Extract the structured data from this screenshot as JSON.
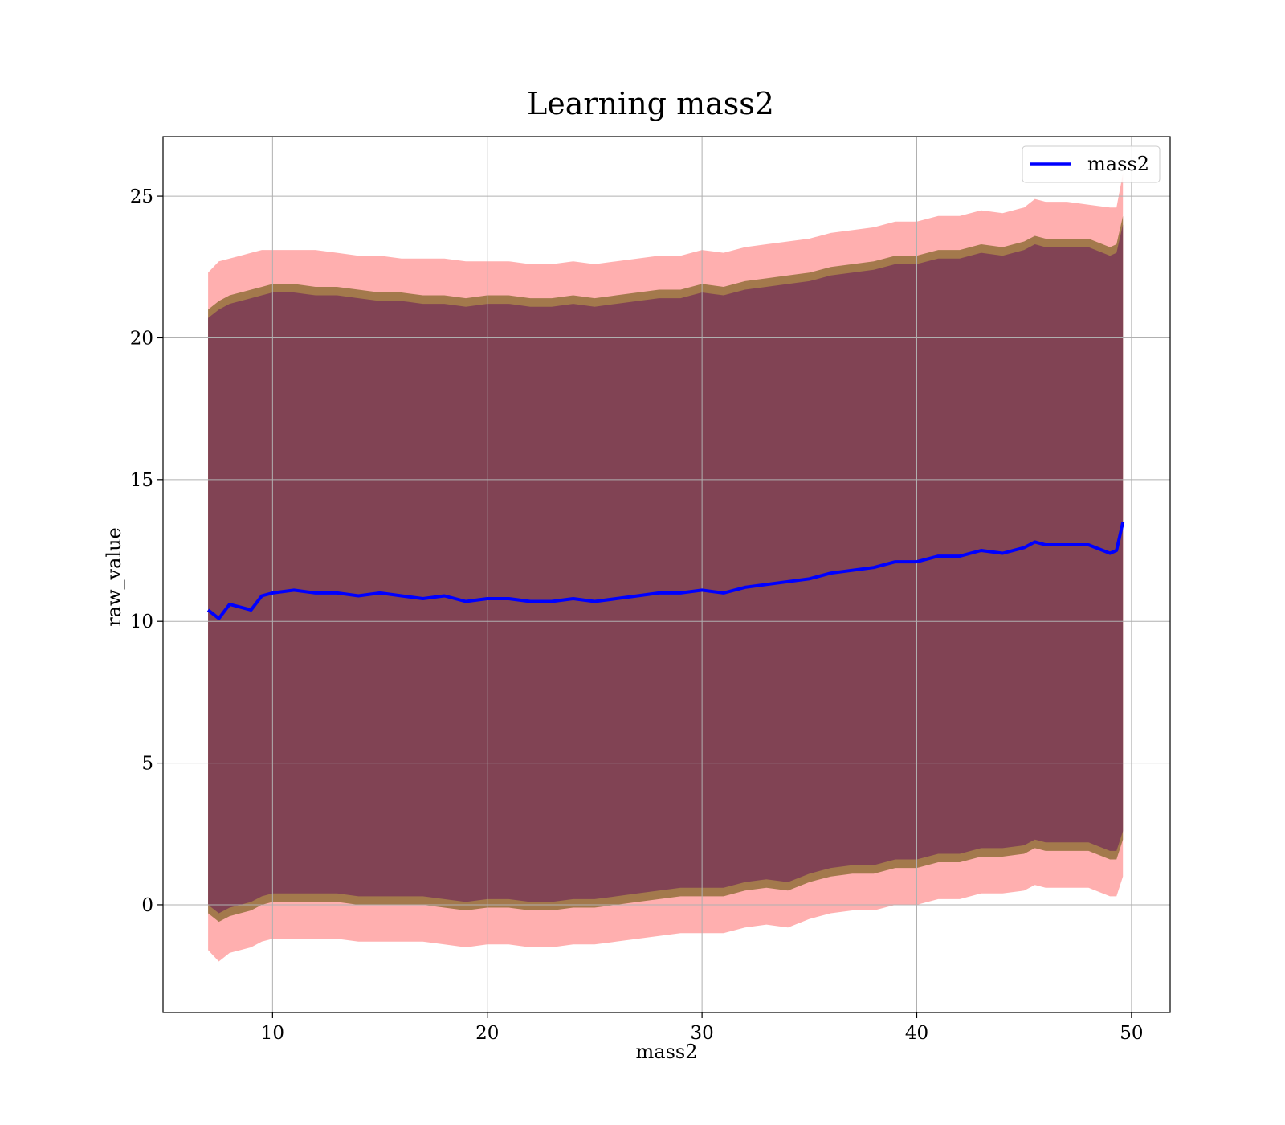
{
  "chart_data": {
    "type": "area",
    "title": "Learning mass2",
    "xlabel": "mass2",
    "ylabel": "raw_value",
    "xlim": [
      4.9,
      51.8
    ],
    "ylim": [
      -3.8,
      27.1
    ],
    "xticks": [
      10,
      20,
      30,
      40,
      50
    ],
    "yticks": [
      0,
      5,
      10,
      15,
      20,
      25
    ],
    "grid": true,
    "legend": {
      "position": "upper-right",
      "entries": [
        "mass2"
      ]
    },
    "colors": {
      "line": "#0000ff",
      "outer_band": "#ff6e6e",
      "middle_band": "#a3794c",
      "inner_band": "#7b3a56",
      "grid": "#b0b0b0"
    },
    "series": [
      {
        "name": "mass2",
        "x": [
          7.0,
          7.5,
          8,
          8.5,
          9,
          9.5,
          10,
          11,
          12,
          13,
          14,
          15,
          16,
          17,
          18,
          19,
          20,
          21,
          22,
          23,
          24,
          25,
          26,
          27,
          28,
          29,
          30,
          31,
          32,
          33,
          34,
          35,
          36,
          37,
          38,
          39,
          40,
          41,
          42,
          43,
          44,
          45,
          45.5,
          46,
          47,
          48,
          49,
          49.3,
          49.6
        ],
        "y": [
          10.4,
          10.1,
          10.6,
          10.5,
          10.4,
          10.9,
          11.0,
          11.1,
          11.0,
          11.0,
          10.9,
          11.0,
          10.9,
          10.8,
          10.9,
          10.7,
          10.8,
          10.8,
          10.7,
          10.7,
          10.8,
          10.7,
          10.8,
          10.9,
          11.0,
          11.0,
          11.1,
          11.0,
          11.2,
          11.3,
          11.4,
          11.5,
          11.7,
          11.8,
          11.9,
          12.1,
          12.1,
          12.3,
          12.3,
          12.5,
          12.4,
          12.6,
          12.8,
          12.7,
          12.7,
          12.7,
          12.4,
          12.5,
          13.5
        ]
      }
    ],
    "bands": [
      {
        "name": "outer",
        "upper": [
          22.3,
          22.7,
          22.8,
          22.9,
          23.0,
          23.1,
          23.1,
          23.1,
          23.1,
          23.0,
          22.9,
          22.9,
          22.8,
          22.8,
          22.8,
          22.7,
          22.7,
          22.7,
          22.6,
          22.6,
          22.7,
          22.6,
          22.7,
          22.8,
          22.9,
          22.9,
          23.1,
          23.0,
          23.2,
          23.3,
          23.4,
          23.5,
          23.7,
          23.8,
          23.9,
          24.1,
          24.1,
          24.3,
          24.3,
          24.5,
          24.4,
          24.6,
          24.9,
          24.8,
          24.8,
          24.7,
          24.6,
          24.6,
          25.8
        ],
        "lower": [
          -1.6,
          -2.0,
          -1.7,
          -1.6,
          -1.5,
          -1.3,
          -1.2,
          -1.2,
          -1.2,
          -1.2,
          -1.3,
          -1.3,
          -1.3,
          -1.3,
          -1.4,
          -1.5,
          -1.4,
          -1.4,
          -1.5,
          -1.5,
          -1.4,
          -1.4,
          -1.3,
          -1.2,
          -1.1,
          -1.0,
          -1.0,
          -1.0,
          -0.8,
          -0.7,
          -0.8,
          -0.5,
          -0.3,
          -0.2,
          -0.2,
          0.0,
          0.0,
          0.2,
          0.2,
          0.4,
          0.4,
          0.5,
          0.7,
          0.6,
          0.6,
          0.6,
          0.3,
          0.3,
          1.0
        ]
      },
      {
        "name": "middle",
        "upper": [
          21.0,
          21.3,
          21.5,
          21.6,
          21.7,
          21.8,
          21.9,
          21.9,
          21.8,
          21.8,
          21.7,
          21.6,
          21.6,
          21.5,
          21.5,
          21.4,
          21.5,
          21.5,
          21.4,
          21.4,
          21.5,
          21.4,
          21.5,
          21.6,
          21.7,
          21.7,
          21.9,
          21.8,
          22.0,
          22.1,
          22.2,
          22.3,
          22.5,
          22.6,
          22.7,
          22.9,
          22.9,
          23.1,
          23.1,
          23.3,
          23.2,
          23.4,
          23.6,
          23.5,
          23.5,
          23.5,
          23.2,
          23.3,
          24.3
        ],
        "lower": [
          -0.3,
          -0.6,
          -0.4,
          -0.3,
          -0.2,
          0.0,
          0.1,
          0.1,
          0.1,
          0.1,
          0.0,
          0.0,
          0.0,
          0.0,
          -0.1,
          -0.2,
          -0.1,
          -0.1,
          -0.2,
          -0.2,
          -0.1,
          -0.1,
          0.0,
          0.1,
          0.2,
          0.3,
          0.3,
          0.3,
          0.5,
          0.6,
          0.5,
          0.8,
          1.0,
          1.1,
          1.1,
          1.3,
          1.3,
          1.5,
          1.5,
          1.7,
          1.7,
          1.8,
          2.0,
          1.9,
          1.9,
          1.9,
          1.6,
          1.6,
          2.3
        ]
      },
      {
        "name": "inner",
        "upper": [
          20.7,
          21.0,
          21.2,
          21.3,
          21.4,
          21.5,
          21.6,
          21.6,
          21.5,
          21.5,
          21.4,
          21.3,
          21.3,
          21.2,
          21.2,
          21.1,
          21.2,
          21.2,
          21.1,
          21.1,
          21.2,
          21.1,
          21.2,
          21.3,
          21.4,
          21.4,
          21.6,
          21.5,
          21.7,
          21.8,
          21.9,
          22.0,
          22.2,
          22.3,
          22.4,
          22.6,
          22.6,
          22.8,
          22.8,
          23.0,
          22.9,
          23.1,
          23.3,
          23.2,
          23.2,
          23.2,
          22.9,
          23.0,
          24.0
        ],
        "lower": [
          0.0,
          -0.3,
          -0.1,
          0.0,
          0.1,
          0.3,
          0.4,
          0.4,
          0.4,
          0.4,
          0.3,
          0.3,
          0.3,
          0.3,
          0.2,
          0.1,
          0.2,
          0.2,
          0.1,
          0.1,
          0.2,
          0.2,
          0.3,
          0.4,
          0.5,
          0.6,
          0.6,
          0.6,
          0.8,
          0.9,
          0.8,
          1.1,
          1.3,
          1.4,
          1.4,
          1.6,
          1.6,
          1.8,
          1.8,
          2.0,
          2.0,
          2.1,
          2.3,
          2.2,
          2.2,
          2.2,
          1.9,
          1.9,
          2.6
        ]
      }
    ]
  }
}
